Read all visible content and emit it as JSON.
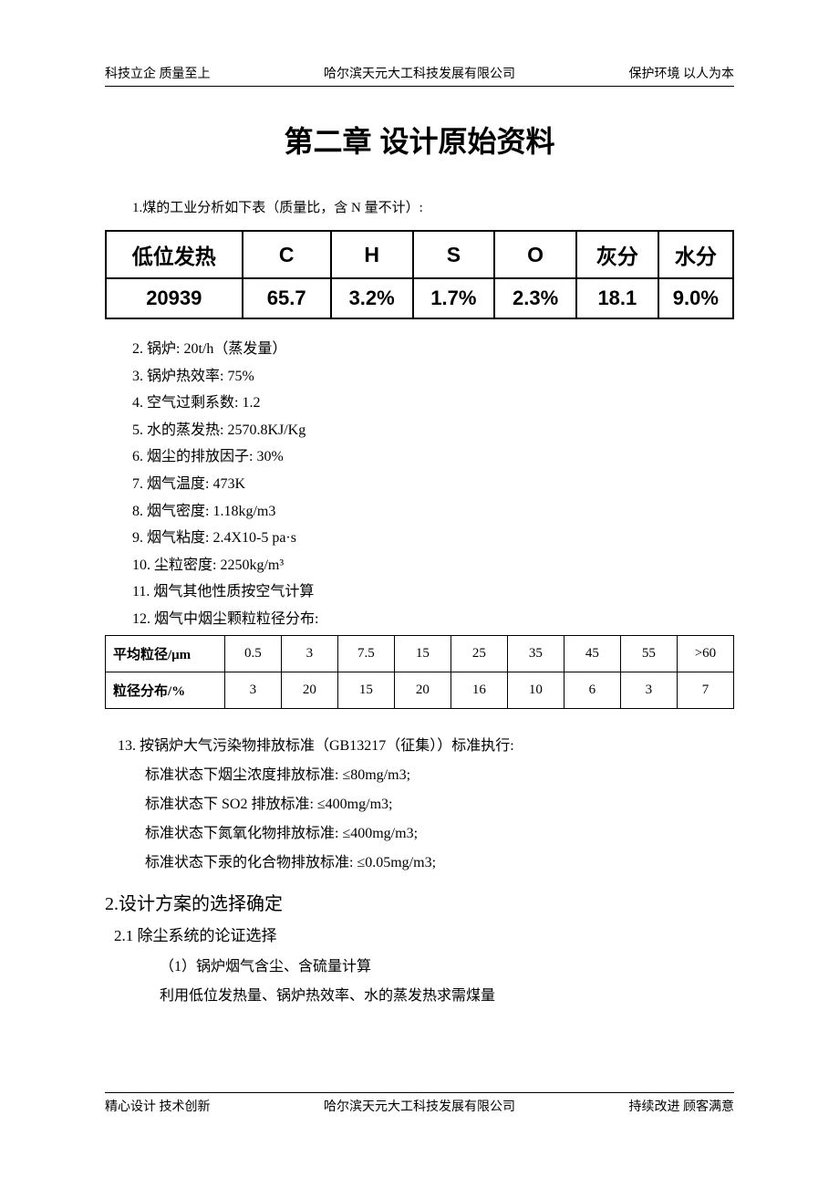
{
  "header": {
    "left": "科技立企  质量至上",
    "center": "哈尔滨天元大工科技发展有限公司",
    "right": "保护环境  以人为本"
  },
  "chapter_title": "第二章  设计原始资料",
  "intro": "1.煤的工业分析如下表（质量比，含 N 量不计）:",
  "table1": {
    "headers": [
      "低位发热",
      "C",
      "H",
      "S",
      "O",
      "灰分",
      "水分"
    ],
    "values": [
      "20939",
      "65.7",
      "3.2%",
      "1.7%",
      "2.3%",
      "18.1",
      "9.0%"
    ]
  },
  "list": [
    "2. 锅炉: 20t/h（蒸发量）",
    "3. 锅炉热效率: 75%",
    "4. 空气过剩系数: 1.2",
    "5. 水的蒸发热: 2570.8KJ/Kg",
    "6. 烟尘的排放因子: 30%",
    "7. 烟气温度: 473K",
    "8. 烟气密度: 1.18kg/m3",
    "9. 烟气粘度: 2.4X10-5 pa·s",
    "10. 尘粒密度: 2250kg/m³",
    "11. 烟气其他性质按空气计算",
    "12. 烟气中烟尘颗粒粒径分布:"
  ],
  "table2": {
    "row1_label": "平均粒径/μm",
    "row1_values": [
      "0.5",
      "3",
      "7.5",
      "15",
      "25",
      "35",
      "45",
      "55",
      ">60"
    ],
    "row2_label": "粒径分布/%",
    "row2_values": [
      "3",
      "20",
      "15",
      "20",
      "16",
      "10",
      "6",
      "3",
      "7"
    ]
  },
  "item13": "13. 按锅炉大气污染物排放标准（GB13217（征集））标准执行:",
  "standards": [
    "标准状态下烟尘浓度排放标准: ≤80mg/m3;",
    "标准状态下 SO2 排放标准: ≤400mg/m3;",
    "标准状态下氮氧化物排放标准: ≤400mg/m3;",
    "标准状态下汞的化合物排放标准: ≤0.05mg/m3;"
  ],
  "section2": "2.设计方案的选择确定",
  "section2_1": "2.1 除尘系统的论证选择",
  "sub_items": [
    "（1）锅炉烟气含尘、含硫量计算",
    "利用低位发热量、锅炉热效率、水的蒸发热求需煤量"
  ],
  "footer": {
    "left": "精心设计  技术创新",
    "center": "哈尔滨天元大工科技发展有限公司",
    "right": "持续改进  顾客满意"
  }
}
